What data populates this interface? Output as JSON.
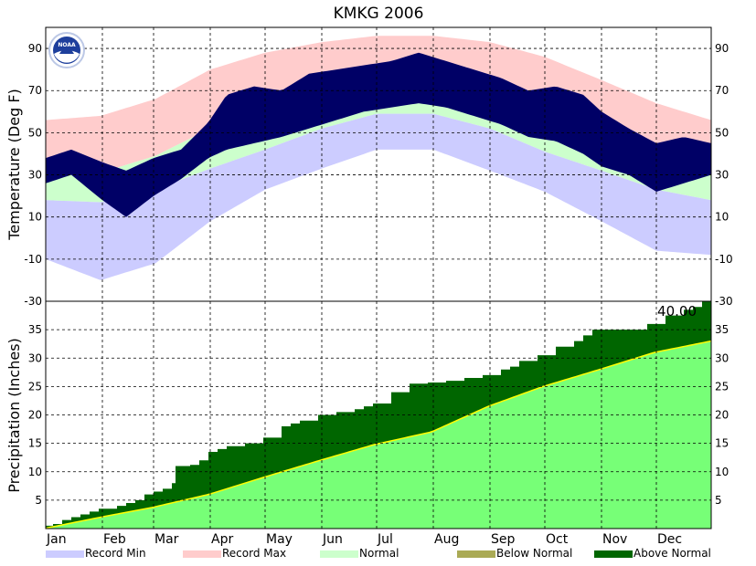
{
  "chart_data": [
    {
      "panel": "temperature",
      "type": "area",
      "title": "KMKG 2006",
      "ylabel": "Temperature (Deg F)",
      "ylim": [
        -30,
        100
      ],
      "yticks": [
        -30,
        -10,
        10,
        30,
        50,
        70,
        90
      ],
      "categories": [
        "Jan",
        "Feb",
        "Mar",
        "Apr",
        "May",
        "Jun",
        "Jul",
        "Aug",
        "Sep",
        "Oct",
        "Nov",
        "Dec"
      ],
      "grid": true,
      "series": [
        {
          "name": "Record Max",
          "x": [
            1,
            31,
            61,
            91,
            121,
            152,
            182,
            213,
            244,
            274,
            305,
            335,
            365
          ],
          "values": [
            56,
            58,
            66,
            80,
            88,
            93,
            96,
            96,
            93,
            86,
            75,
            64,
            56
          ]
        },
        {
          "name": "Normal",
          "x": [
            1,
            31,
            61,
            91,
            121,
            152,
            182,
            213,
            244,
            274,
            305,
            335,
            365
          ],
          "high": [
            30,
            31,
            39,
            52,
            64,
            74,
            80,
            78,
            71,
            59,
            46,
            35,
            30
          ],
          "low": [
            18,
            17,
            23,
            33,
            42,
            52,
            59,
            59,
            52,
            41,
            32,
            23,
            18
          ]
        },
        {
          "name": "Record Min",
          "x": [
            1,
            31,
            61,
            91,
            121,
            152,
            182,
            213,
            244,
            274,
            305,
            335,
            365
          ],
          "values": [
            -10,
            -20,
            -12,
            8,
            23,
            33,
            42,
            42,
            32,
            22,
            8,
            -6,
            -8
          ]
        },
        {
          "name": "Observed",
          "x": [
            1,
            15,
            32,
            45,
            60,
            75,
            90,
            100,
            115,
            130,
            145,
            160,
            175,
            190,
            205,
            220,
            235,
            250,
            265,
            280,
            295,
            305,
            320,
            335,
            350,
            365
          ],
          "high": [
            38,
            42,
            36,
            32,
            38,
            42,
            55,
            68,
            72,
            70,
            78,
            80,
            82,
            84,
            88,
            84,
            80,
            76,
            70,
            72,
            68,
            60,
            52,
            45,
            48,
            45
          ],
          "low": [
            26,
            30,
            18,
            10,
            20,
            28,
            38,
            42,
            45,
            48,
            52,
            56,
            60,
            62,
            64,
            62,
            58,
            54,
            48,
            46,
            40,
            34,
            30,
            22,
            26,
            30
          ]
        }
      ]
    },
    {
      "panel": "precipitation",
      "type": "area",
      "ylabel": "Precipitation (Inches)",
      "ylim": [
        0,
        40
      ],
      "yticks": [
        5,
        10,
        15,
        20,
        25,
        30,
        35
      ],
      "total_label": "40.00",
      "grid": true,
      "series": [
        {
          "name": "Normal",
          "x": [
            0,
            31,
            59,
            90,
            120,
            151,
            181,
            212,
            243,
            273,
            304,
            334,
            365
          ],
          "values": [
            0,
            2.0,
            3.7,
            6.0,
            9.0,
            12.0,
            14.8,
            17.0,
            21.5,
            25.0,
            28.0,
            31.0,
            33.0
          ]
        },
        {
          "name": "Observed",
          "x": [
            0,
            5,
            10,
            15,
            20,
            25,
            30,
            40,
            45,
            50,
            55,
            60,
            65,
            70,
            72,
            80,
            85,
            90,
            95,
            100,
            110,
            120,
            130,
            135,
            140,
            150,
            160,
            170,
            175,
            180,
            190,
            200,
            210,
            220,
            230,
            240,
            250,
            255,
            260,
            270,
            280,
            290,
            295,
            300,
            310,
            320,
            330,
            340,
            350,
            355,
            360,
            365
          ],
          "values": [
            0.5,
            0.8,
            1.5,
            2.0,
            2.5,
            3.0,
            3.5,
            4.0,
            4.5,
            5.0,
            6.0,
            6.5,
            7.0,
            8.0,
            11.0,
            11.2,
            12.0,
            13.5,
            14.0,
            14.5,
            15.0,
            16.0,
            18.0,
            18.5,
            19.0,
            20.0,
            20.5,
            21.0,
            21.5,
            22.0,
            24.0,
            25.5,
            25.7,
            26.0,
            26.5,
            27.0,
            28.0,
            28.5,
            29.5,
            30.5,
            32.0,
            33.0,
            34.0,
            35.0,
            35.0,
            35.0,
            36.0,
            37.5,
            38.5,
            39.0,
            40.0,
            40.0
          ]
        }
      ]
    }
  ],
  "legend": {
    "items": [
      {
        "label": "Record Min",
        "color": "#ccccff"
      },
      {
        "label": "Record Max",
        "color": "#ffcccc"
      },
      {
        "label": "Normal",
        "color": "#ccffcc"
      },
      {
        "label": "Below Normal",
        "color": "#aaaa55"
      },
      {
        "label": "Above Normal",
        "color": "#006600"
      }
    ]
  },
  "colors": {
    "observed_temp": "#000066",
    "normal_precip": "#77ff77",
    "above_normal": "#006600",
    "normal_line": "#ffff00"
  },
  "icons": {
    "logo": "noaa-logo-icon"
  }
}
